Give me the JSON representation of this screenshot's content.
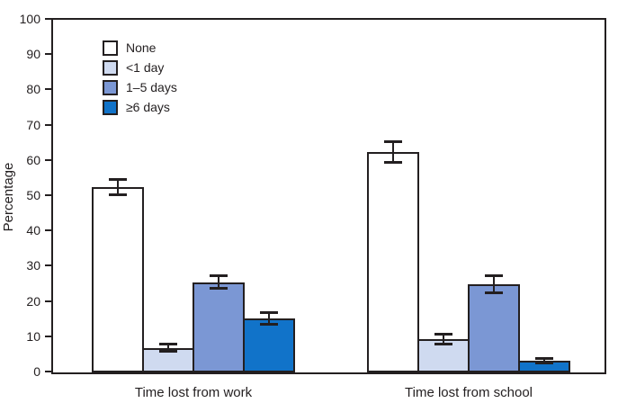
{
  "chart_data": {
    "type": "bar",
    "title": "",
    "ylabel": "Percentage",
    "xlabel": "",
    "ylim": [
      0,
      100
    ],
    "yticks": [
      0,
      10,
      20,
      30,
      40,
      50,
      60,
      70,
      80,
      90,
      100
    ],
    "grid": false,
    "legend_position": "top-left",
    "error_bars": true,
    "categories": [
      "Time lost from work",
      "Time lost from school"
    ],
    "series": [
      {
        "name": "None",
        "color": "#ffffff",
        "values": [
          52.5,
          62.5
        ],
        "error_low": [
          50.0,
          59.2
        ],
        "error_high": [
          55.0,
          65.8
        ]
      },
      {
        "name": "<1 day",
        "color": "#cfdaf0",
        "values": [
          7.0,
          9.5
        ],
        "error_low": [
          5.6,
          7.7
        ],
        "error_high": [
          8.4,
          11.3
        ]
      },
      {
        "name": "1–5 days",
        "color": "#7b97d4",
        "values": [
          25.5,
          25.0
        ],
        "error_low": [
          23.3,
          22.2
        ],
        "error_high": [
          27.7,
          27.9
        ]
      },
      {
        "name": "≥6 days",
        "color": "#1173c9",
        "values": [
          15.3,
          3.3
        ],
        "error_low": [
          13.3,
          2.3
        ],
        "error_high": [
          17.3,
          4.3
        ]
      }
    ]
  },
  "colors": {
    "axis": "#231f20",
    "background": "#ffffff"
  }
}
